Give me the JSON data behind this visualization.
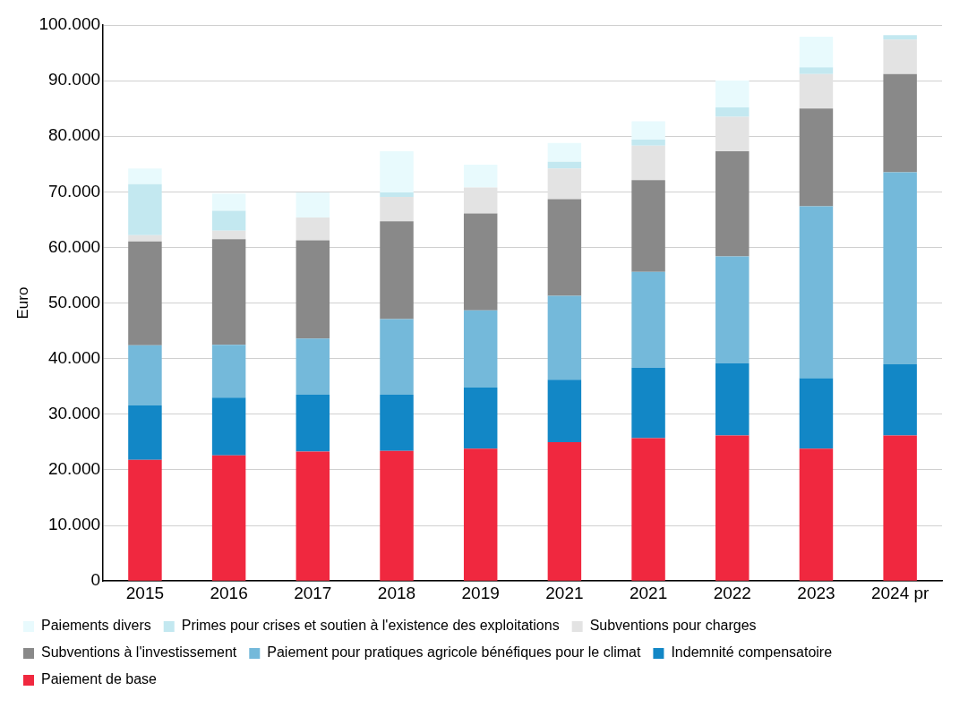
{
  "chart_data": {
    "type": "bar",
    "stacked": true,
    "ylabel": "Euro",
    "categories": [
      "2015",
      "2016",
      "2017",
      "2018",
      "2019",
      "2021",
      "2021",
      "2022",
      "2023",
      "2024 pr"
    ],
    "series": [
      {
        "name": "Paiement de base",
        "color": "#f0283f",
        "values": [
          21800,
          22600,
          23300,
          23400,
          23800,
          25000,
          25700,
          26200,
          23800,
          26200
        ]
      },
      {
        "name": "Indemnité compensatoire",
        "color": "#1287c6",
        "values": [
          9800,
          10400,
          10200,
          10100,
          11000,
          11200,
          12700,
          13000,
          12700,
          12800
        ]
      },
      {
        "name": "Paiement pour pratiques agricole bénéfiques pour le climat",
        "color": "#74b9da",
        "values": [
          10800,
          9500,
          10100,
          13600,
          13900,
          15100,
          17200,
          19200,
          30900,
          34500
        ]
      },
      {
        "name": "Subventions à l'investissement",
        "color": "#898989",
        "values": [
          18700,
          19000,
          17700,
          17600,
          17400,
          17400,
          16500,
          18900,
          17600,
          17700
        ]
      },
      {
        "name": "Subventions pour charges",
        "color": "#e3e3e3",
        "values": [
          1100,
          1500,
          4100,
          4400,
          4700,
          5500,
          6200,
          6200,
          6200,
          6200
        ]
      },
      {
        "name": "Primes pour crises et soutien à l'existence des exploitations",
        "color": "#c3e8f0",
        "values": [
          9200,
          3600,
          0,
          800,
          0,
          1200,
          1100,
          1700,
          1200,
          800
        ]
      },
      {
        "name": "Paiements divers",
        "color": "#e8fafd",
        "values": [
          2800,
          3100,
          4500,
          7400,
          4100,
          3400,
          3300,
          4800,
          5500,
          0
        ]
      }
    ],
    "ylim": [
      0,
      100000
    ],
    "yticks": [
      0,
      {
        "value": 10000,
        "label": "10.000"
      },
      {
        "value": 20000,
        "label": "20.000"
      },
      {
        "value": 30000,
        "label": "30.000"
      },
      {
        "value": 40000,
        "label": "40.000"
      },
      {
        "value": 50000,
        "label": "50.000"
      },
      {
        "value": 60000,
        "label": "60.000"
      },
      {
        "value": 70000,
        "label": "70.000"
      },
      {
        "value": 80000,
        "label": "80.000"
      },
      {
        "value": 90000,
        "label": "90.000"
      },
      {
        "value": 100000,
        "label": "100.000"
      }
    ],
    "grid": "y",
    "legend": "bottom"
  }
}
